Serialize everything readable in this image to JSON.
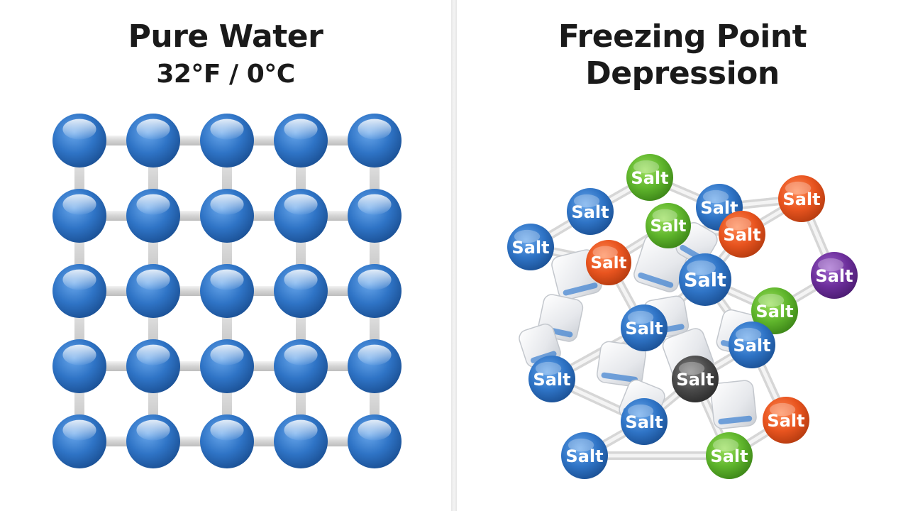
{
  "left": {
    "title": "Pure Water",
    "subtitle": "32°F / 0°C",
    "lattice": {
      "rows": 5,
      "cols": 5
    }
  },
  "right": {
    "title_line1": "Freezing Point",
    "title_line2": "Depression",
    "salt_label": "Salt",
    "particle_colors": {
      "blue": "#2f74c6",
      "green": "#5fb52c",
      "orange": "#e8541f",
      "purple": "#6d2f9c",
      "gray": "#4a4a4a"
    }
  }
}
